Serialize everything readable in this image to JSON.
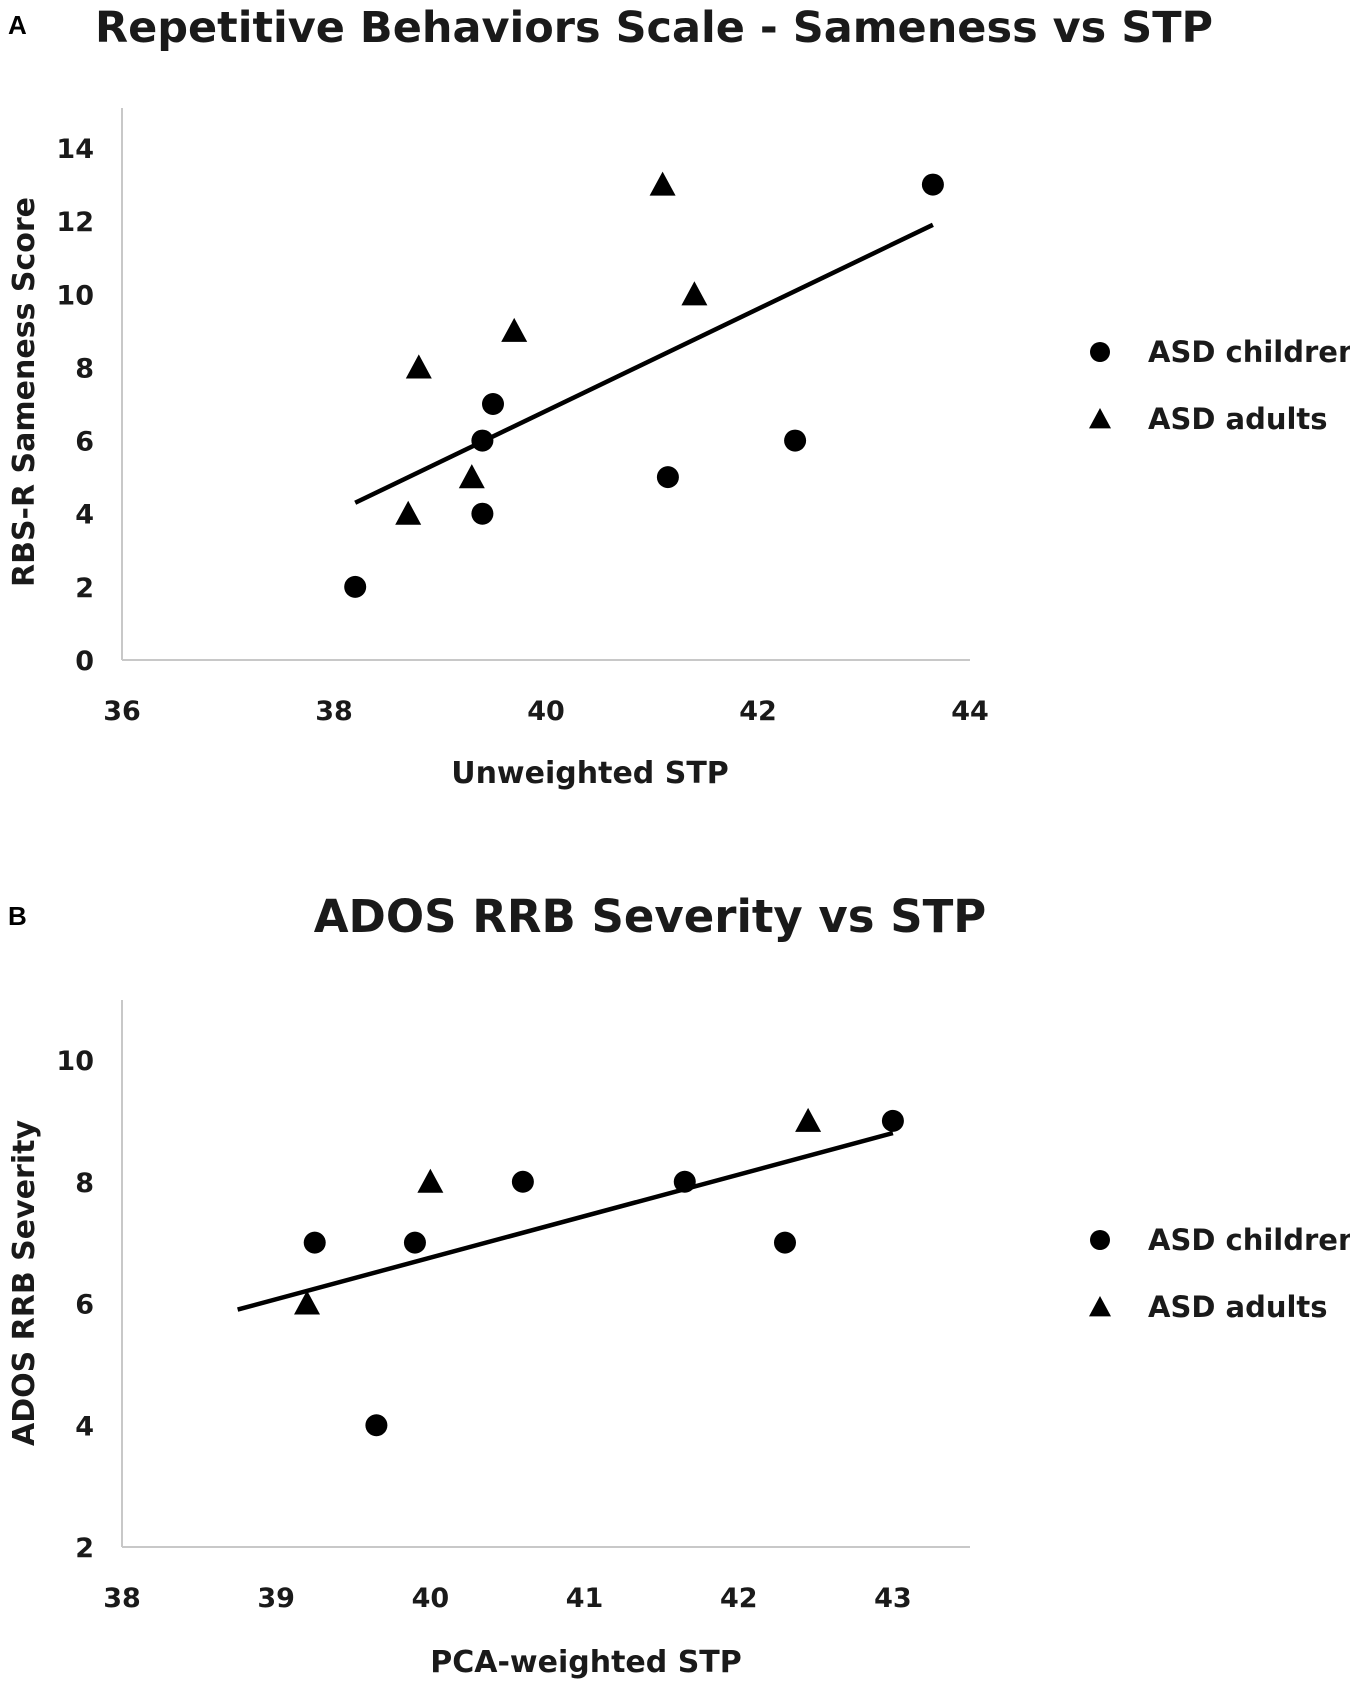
{
  "chart_data": [
    {
      "panel": "A",
      "type": "scatter",
      "title": "Repetitive Behaviors Scale - Sameness vs STP",
      "xlabel": "Unweighted STP",
      "ylabel": "RBS-R Sameness Score",
      "xlim": [
        36,
        44
      ],
      "ylim": [
        0,
        14
      ],
      "xticks": [
        36,
        38,
        40,
        42,
        44
      ],
      "yticks": [
        0,
        2,
        4,
        6,
        8,
        10,
        12,
        14
      ],
      "legend": "right",
      "series": [
        {
          "name": "ASD children",
          "marker": "circle",
          "points": [
            [
              38.2,
              2
            ],
            [
              39.4,
              4
            ],
            [
              39.4,
              6
            ],
            [
              39.5,
              7
            ],
            [
              41.15,
              5
            ],
            [
              42.35,
              6
            ],
            [
              43.65,
              13
            ]
          ]
        },
        {
          "name": "ASD adults",
          "marker": "triangle",
          "points": [
            [
              38.7,
              4
            ],
            [
              38.8,
              8
            ],
            [
              39.3,
              5
            ],
            [
              39.7,
              9
            ],
            [
              41.1,
              13
            ],
            [
              41.4,
              10
            ]
          ]
        }
      ],
      "trendline": [
        [
          38.2,
          4.3
        ],
        [
          43.65,
          11.9
        ]
      ]
    },
    {
      "panel": "B",
      "type": "scatter",
      "title": "ADOS RRB Severity vs STP",
      "xlabel": "PCA-weighted STP",
      "ylabel": "ADOS RRB Severity",
      "xlim": [
        38,
        43.5
      ],
      "ylim": [
        2,
        11
      ],
      "xticks": [
        38,
        39,
        40,
        41,
        42,
        43
      ],
      "yticks": [
        2,
        4,
        6,
        8,
        10
      ],
      "legend": "right",
      "series": [
        {
          "name": "ASD children",
          "marker": "circle",
          "points": [
            [
              39.25,
              7
            ],
            [
              39.65,
              4
            ],
            [
              39.9,
              7
            ],
            [
              40.6,
              8
            ],
            [
              41.65,
              8
            ],
            [
              42.3,
              7
            ],
            [
              43.0,
              9
            ]
          ]
        },
        {
          "name": "ASD adults",
          "marker": "triangle",
          "points": [
            [
              39.2,
              6
            ],
            [
              40.0,
              8
            ],
            [
              42.45,
              9
            ]
          ]
        }
      ],
      "trendline": [
        [
          38.75,
          5.9
        ],
        [
          43.0,
          8.8
        ]
      ]
    }
  ]
}
